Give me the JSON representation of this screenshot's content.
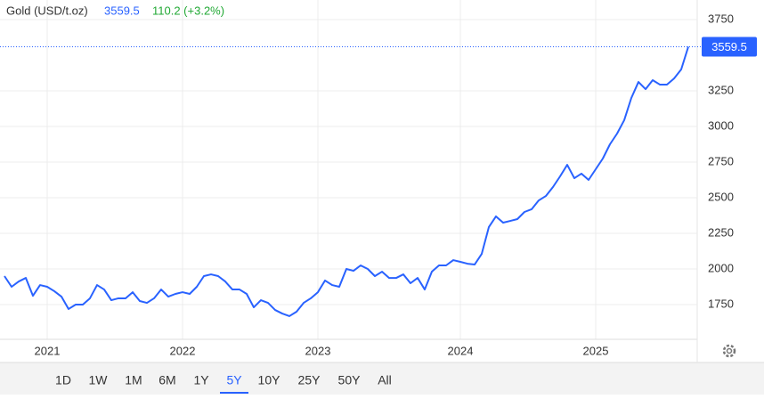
{
  "chart_data": {
    "type": "line",
    "instrument": "Gold (USD/t.oz)",
    "price": 3559.5,
    "change": "110.2 (+3.2%)",
    "categories": [
      null,
      null,
      null,
      null,
      null,
      null,
      "2021",
      null,
      null,
      null,
      null,
      null,
      null,
      null,
      null,
      null,
      null,
      null,
      null,
      null,
      null,
      null,
      null,
      null,
      null,
      "2022",
      null,
      null,
      null,
      null,
      null,
      null,
      null,
      null,
      null,
      null,
      null,
      null,
      null,
      null,
      null,
      null,
      null,
      null,
      "2023",
      null,
      null,
      null,
      null,
      null,
      null,
      null,
      null,
      null,
      null,
      null,
      null,
      null,
      null,
      null,
      null,
      null,
      null,
      null,
      "2024",
      null,
      null,
      null,
      null,
      null,
      null,
      null,
      null,
      null,
      null,
      null,
      null,
      null,
      null,
      null,
      null,
      null,
      null,
      "2025",
      null,
      null,
      null,
      null,
      null,
      null,
      null,
      null,
      null,
      null,
      null,
      null,
      null
    ],
    "values": [
      1950,
      1875,
      1912,
      1937,
      1812,
      1887,
      1875,
      1844,
      1806,
      1719,
      1750,
      1750,
      1794,
      1887,
      1856,
      1781,
      1794,
      1794,
      1837,
      1775,
      1762,
      1794,
      1856,
      1806,
      1825,
      1837,
      1825,
      1875,
      1950,
      1962,
      1950,
      1912,
      1856,
      1856,
      1825,
      1731,
      1781,
      1762,
      1712,
      1687,
      1669,
      1700,
      1762,
      1794,
      1837,
      1919,
      1887,
      1875,
      2000,
      1987,
      2025,
      2000,
      1950,
      1981,
      1937,
      1937,
      1962,
      1900,
      1937,
      1856,
      1981,
      2025,
      2025,
      2062,
      2050,
      2037,
      2031,
      2106,
      2294,
      2369,
      2325,
      2337,
      2350,
      2400,
      2419,
      2481,
      2512,
      2575,
      2650,
      2731,
      2637,
      2669,
      2625,
      2700,
      2775,
      2875,
      2950,
      3044,
      3200,
      3312,
      3262,
      3325,
      3294,
      3294,
      3337,
      3400,
      3559.5
    ],
    "color": "#2962ff",
    "ylim": [
      1506.25,
      3862.5
    ],
    "yticks": [
      1750,
      2000,
      2250,
      2500,
      2750,
      3000,
      3250,
      3750
    ],
    "grid": true,
    "ranges": [
      {
        "label": "1D",
        "active": false
      },
      {
        "label": "1W",
        "active": false
      },
      {
        "label": "1M",
        "active": false
      },
      {
        "label": "6M",
        "active": false
      },
      {
        "label": "1Y",
        "active": false
      },
      {
        "label": "5Y",
        "active": true
      },
      {
        "label": "10Y",
        "active": false
      },
      {
        "label": "25Y",
        "active": false
      },
      {
        "label": "50Y",
        "active": false
      },
      {
        "label": "All",
        "active": false
      }
    ]
  }
}
